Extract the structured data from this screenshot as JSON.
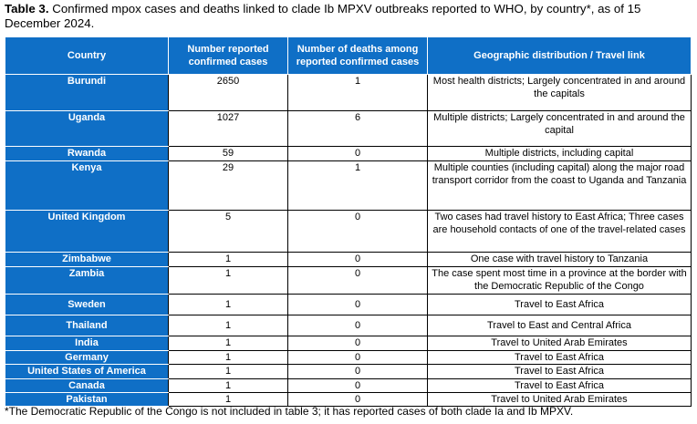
{
  "caption": {
    "bold": "Table 3.",
    "text": " Confirmed mpox cases and deaths linked to clade Ib MPXV outbreaks reported to WHO, by country*, as of 15 December 2024."
  },
  "headers": {
    "country": "Country",
    "cases": "Number reported confirmed cases",
    "deaths": "Number of deaths among reported confirmed cases",
    "geo": "Geographic distribution / Travel link"
  },
  "rows": [
    {
      "country": "Burundi",
      "cases": "2650",
      "deaths": "1",
      "geo": "Most health districts; Largely concentrated in and around the capitals"
    },
    {
      "country": "Uganda",
      "cases": "1027",
      "deaths": "6",
      "geo": "Multiple districts; Largely concentrated in and around the capital"
    },
    {
      "country": "Rwanda",
      "cases": "59",
      "deaths": "0",
      "geo": "Multiple districts, including capital"
    },
    {
      "country": "Kenya",
      "cases": "29",
      "deaths": "1",
      "geo": "Multiple counties (including capital) along the major road transport corridor from the coast to Uganda and Tanzania"
    },
    {
      "country": "United Kingdom",
      "cases": "5",
      "deaths": "0",
      "geo": "Two cases had travel history to East Africa; Three cases are household contacts of one of the travel-related cases"
    },
    {
      "country": "Zimbabwe",
      "cases": "1",
      "deaths": "0",
      "geo": "One case with travel history to Tanzania"
    },
    {
      "country": "Zambia",
      "cases": "1",
      "deaths": "0",
      "geo": "The case spent most time in a province at the border with the Democratic Republic of the Congo"
    },
    {
      "country": "Sweden",
      "cases": "1",
      "deaths": "0",
      "geo": "Travel to East Africa"
    },
    {
      "country": "Thailand",
      "cases": "1",
      "deaths": "0",
      "geo": "Travel to East and Central Africa"
    },
    {
      "country": "India",
      "cases": "1",
      "deaths": "0",
      "geo": "Travel to United Arab Emirates"
    },
    {
      "country": "Germany",
      "cases": "1",
      "deaths": "0",
      "geo": "Travel to East Africa"
    },
    {
      "country": "United States of America",
      "cases": "1",
      "deaths": "0",
      "geo": "Travel to East Africa"
    },
    {
      "country": "Canada",
      "cases": "1",
      "deaths": "0",
      "geo": "Travel to East Africa"
    },
    {
      "country": "Pakistan",
      "cases": "1",
      "deaths": "0",
      "geo": "Travel to United Arab Emirates"
    }
  ],
  "footnote": "*The Democratic Republic of the Congo is not included in table 3; it has reported cases of both clade Ia and Ib MPXV.",
  "colors": {
    "header_bg": "#0F6FC6",
    "header_text": "#ffffff"
  }
}
